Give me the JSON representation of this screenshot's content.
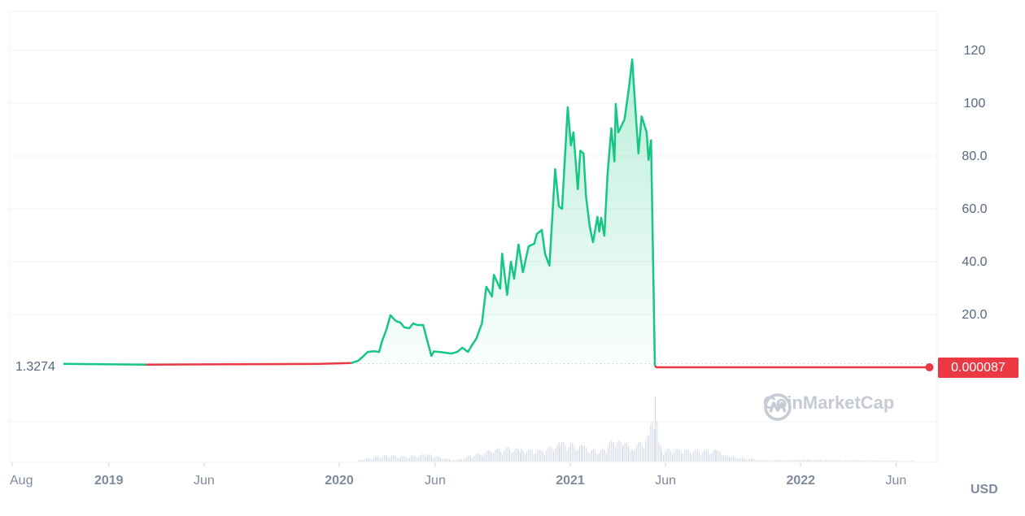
{
  "chart_data": {
    "type": "area",
    "currency_label": "USD",
    "watermark": "CoinMarketCap",
    "start_value_label": "1.3274",
    "current_value_label": "0.000087",
    "baseline": 1.3274,
    "ylim": [
      0,
      130
    ],
    "y_ticks": [
      "20.0",
      "40.0",
      "60.0",
      "80.0",
      "100",
      "120"
    ],
    "y_tick_values": [
      20,
      40,
      60,
      80,
      100,
      120
    ],
    "x_ticks": [
      {
        "label": "Aug",
        "date": "2018-08-01",
        "bold": false
      },
      {
        "label": "2019",
        "date": "2019-01-01",
        "bold": true
      },
      {
        "label": "Jun",
        "date": "2019-06-01",
        "bold": false
      },
      {
        "label": "2020",
        "date": "2020-01-01",
        "bold": true
      },
      {
        "label": "Jun",
        "date": "2020-06-01",
        "bold": false
      },
      {
        "label": "2021",
        "date": "2021-01-01",
        "bold": true
      },
      {
        "label": "Jun",
        "date": "2021-06-01",
        "bold": false
      },
      {
        "label": "2022",
        "date": "2022-01-01",
        "bold": true
      },
      {
        "label": "Jun",
        "date": "2022-06-01",
        "bold": false
      }
    ],
    "grid": true,
    "colors": {
      "up": "#16c784",
      "down": "#ea3943",
      "volume": "#cfd6e4",
      "grid": "#eff2f5"
    },
    "series": [
      {
        "points": [
          [
            "2018-10-21",
            1.33
          ],
          [
            "2019-03-01",
            1.0
          ],
          [
            "2019-06-01",
            1.1
          ],
          [
            "2019-09-01",
            1.2
          ],
          [
            "2019-12-01",
            1.3
          ],
          [
            "2020-01-20",
            1.6
          ],
          [
            "2020-01-31",
            2.5
          ],
          [
            "2020-02-06",
            3.7
          ],
          [
            "2020-02-15",
            5.8
          ],
          [
            "2020-02-25",
            6.1
          ],
          [
            "2020-03-04",
            5.8
          ],
          [
            "2020-03-09",
            10
          ],
          [
            "2020-03-16",
            14.5
          ],
          [
            "2020-03-22",
            19.7
          ],
          [
            "2020-03-31",
            17.5
          ],
          [
            "2020-04-07",
            16.9
          ],
          [
            "2020-04-13",
            15.1
          ],
          [
            "2020-04-21",
            14.8
          ],
          [
            "2020-04-27",
            16.6
          ],
          [
            "2020-05-04",
            16
          ],
          [
            "2020-05-13",
            16
          ],
          [
            "2020-05-18",
            11.4
          ],
          [
            "2020-05-26",
            4.3
          ],
          [
            "2020-05-30",
            6
          ],
          [
            "2020-06-08",
            5.8
          ],
          [
            "2020-06-18",
            5.5
          ],
          [
            "2020-06-27",
            5.2
          ],
          [
            "2020-07-06",
            5.8
          ],
          [
            "2020-07-14",
            7.4
          ],
          [
            "2020-07-23",
            5.8
          ],
          [
            "2020-07-29",
            8.3
          ],
          [
            "2020-08-05",
            10.8
          ],
          [
            "2020-08-14",
            16.6
          ],
          [
            "2020-08-21",
            30.5
          ],
          [
            "2020-08-30",
            26.8
          ],
          [
            "2020-09-02",
            35
          ],
          [
            "2020-09-12",
            29.8
          ],
          [
            "2020-09-15",
            43
          ],
          [
            "2020-09-23",
            27.4
          ],
          [
            "2020-09-29",
            40
          ],
          [
            "2020-10-04",
            33.5
          ],
          [
            "2020-10-11",
            46.5
          ],
          [
            "2020-10-18",
            36
          ],
          [
            "2020-10-27",
            45.8
          ],
          [
            "2020-11-05",
            46.8
          ],
          [
            "2020-11-09",
            50.5
          ],
          [
            "2020-11-17",
            52
          ],
          [
            "2020-11-22",
            43
          ],
          [
            "2020-11-29",
            38.5
          ],
          [
            "2020-12-08",
            75
          ],
          [
            "2020-12-14",
            61
          ],
          [
            "2020-12-19",
            60
          ],
          [
            "2020-12-28",
            98.5
          ],
          [
            "2021-01-02",
            84
          ],
          [
            "2021-01-06",
            89
          ],
          [
            "2021-01-13",
            67.4
          ],
          [
            "2021-01-17",
            82
          ],
          [
            "2021-01-22",
            81
          ],
          [
            "2021-01-26",
            64.6
          ],
          [
            "2021-02-01",
            53
          ],
          [
            "2021-02-06",
            47.4
          ],
          [
            "2021-02-13",
            57
          ],
          [
            "2021-02-16",
            51.4
          ],
          [
            "2021-02-19",
            56.6
          ],
          [
            "2021-02-24",
            49.8
          ],
          [
            "2021-03-01",
            73
          ],
          [
            "2021-03-07",
            90.5
          ],
          [
            "2021-03-12",
            78
          ],
          [
            "2021-03-14",
            99.7
          ],
          [
            "2021-03-18",
            89
          ],
          [
            "2021-03-22",
            90.8
          ],
          [
            "2021-03-28",
            94
          ],
          [
            "2021-04-04",
            106
          ],
          [
            "2021-04-09",
            116.6
          ],
          [
            "2021-04-15",
            95
          ],
          [
            "2021-04-19",
            81
          ],
          [
            "2021-04-24",
            95
          ],
          [
            "2021-05-02",
            89
          ],
          [
            "2021-05-05",
            78.5
          ],
          [
            "2021-05-09",
            86
          ],
          [
            "2021-05-15",
            0.5
          ],
          [
            "2021-05-18",
            8.7e-05
          ],
          [
            "2022-07-24",
            8.7e-05
          ]
        ]
      }
    ],
    "volume_relative": [
      [
        "2020-02-01",
        0.03
      ],
      [
        "2020-03-15",
        0.1
      ],
      [
        "2020-04-15",
        0.08
      ],
      [
        "2020-05-20",
        0.12
      ],
      [
        "2020-07-01",
        0.02
      ],
      [
        "2020-08-15",
        0.15
      ],
      [
        "2020-09-15",
        0.22
      ],
      [
        "2020-10-15",
        0.2
      ],
      [
        "2020-11-15",
        0.18
      ],
      [
        "2020-12-15",
        0.3
      ],
      [
        "2021-01-01",
        0.28
      ],
      [
        "2021-01-20",
        0.25
      ],
      [
        "2021-02-15",
        0.15
      ],
      [
        "2021-03-10",
        0.35
      ],
      [
        "2021-03-25",
        0.3
      ],
      [
        "2021-04-10",
        0.25
      ],
      [
        "2021-05-05",
        0.4
      ],
      [
        "2021-05-15",
        1.0
      ],
      [
        "2021-05-25",
        0.2
      ],
      [
        "2021-08-20",
        0.18
      ],
      [
        "2021-09-10",
        0.08
      ],
      [
        "2021-11-01",
        0.02
      ],
      [
        "2022-01-15",
        0.03
      ],
      [
        "2022-07-01",
        0.01
      ]
    ]
  }
}
